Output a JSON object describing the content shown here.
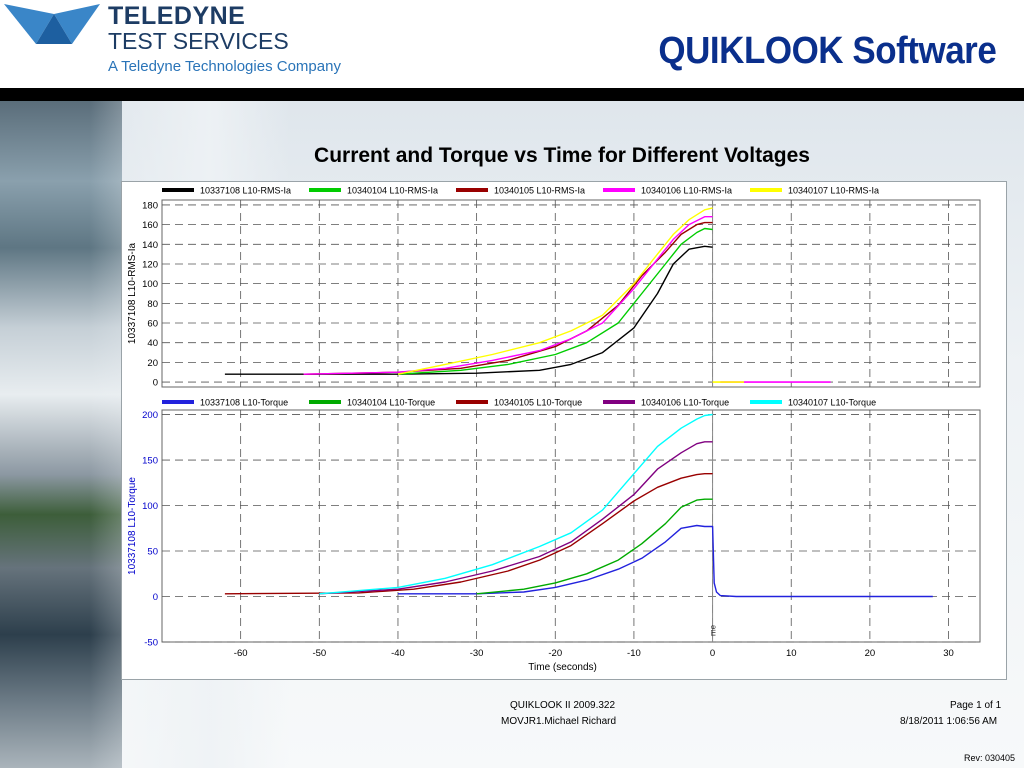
{
  "header": {
    "logo_line1": "TELEDYNE",
    "logo_line2": "TEST SERVICES",
    "logo_line3": "A Teledyne Technologies Company",
    "title": "QUIKLOOK Software"
  },
  "chart_title": "Current and Torque vs Time for Different Voltages",
  "footer": {
    "software": "QUIKLOOK II 2009.322",
    "user": "MOVJR1.Michael Richard",
    "page": "Page 1 of 1",
    "datetime": "8/18/2011 1:06:56 AM",
    "rev": "Rev: 030405"
  },
  "colors": {
    "header_title": "#0a2f8c",
    "logo": "#1d3c64"
  },
  "chart_data": [
    {
      "type": "line",
      "ylabel": "10337108   L10-RMS-Ia",
      "ylabel_color": "#000000",
      "xlim": [
        -70,
        34
      ],
      "ylim": [
        -5,
        185
      ],
      "yticks": [
        0,
        20,
        40,
        60,
        80,
        100,
        120,
        140,
        160,
        180
      ],
      "xticks": [
        -60,
        -50,
        -40,
        -30,
        -20,
        -10,
        0,
        10,
        20,
        30
      ],
      "grid": true,
      "legend": "top",
      "series": [
        {
          "name": "10337108   L10-RMS-Ia",
          "color": "#000000",
          "x": [
            -62,
            -40,
            -30,
            -22,
            -18,
            -14,
            -10,
            -7,
            -5,
            -3,
            -1,
            0
          ],
          "y": [
            8,
            8,
            9,
            12,
            18,
            30,
            55,
            90,
            120,
            135,
            138,
            137
          ],
          "tail_x": [],
          "tail_y": []
        },
        {
          "name": "10340104   L10-RMS-Ia",
          "color": "#00cc00",
          "x": [
            -40,
            -32,
            -26,
            -20,
            -16,
            -12,
            -9,
            -6,
            -4,
            -2,
            -1,
            0
          ],
          "y": [
            8,
            12,
            18,
            28,
            40,
            60,
            90,
            120,
            140,
            152,
            156,
            155
          ],
          "tail_x": [],
          "tail_y": []
        },
        {
          "name": "10340105   L10-RMS-Ia",
          "color": "#990000",
          "x": [
            -52,
            -40,
            -32,
            -26,
            -20,
            -16,
            -12,
            -9,
            -6,
            -4,
            -2,
            -1,
            0
          ],
          "y": [
            8,
            10,
            14,
            22,
            36,
            52,
            78,
            108,
            132,
            150,
            160,
            162,
            162
          ],
          "tail_x": [],
          "tail_y": []
        },
        {
          "name": "10340106   L10-RMS-Ia",
          "color": "#ff00ff",
          "x": [
            -52,
            -40,
            -34,
            -28,
            -22,
            -18,
            -14,
            -10,
            -7,
            -5,
            -3,
            -1,
            0
          ],
          "y": [
            8,
            10,
            14,
            22,
            32,
            44,
            60,
            95,
            125,
            145,
            160,
            168,
            168
          ],
          "tail_x": [
            1,
            15
          ],
          "tail_y": [
            0,
            0
          ]
        },
        {
          "name": "10340107   L10-RMS-Ia",
          "color": "#ffff00",
          "x": [
            -40,
            -34,
            -28,
            -22,
            -18,
            -14,
            -10,
            -7,
            -5,
            -3,
            -1,
            0
          ],
          "y": [
            8,
            18,
            28,
            40,
            52,
            68,
            100,
            130,
            150,
            165,
            175,
            177
          ],
          "tail_x": [
            0,
            4
          ],
          "tail_y": [
            0,
            0
          ]
        }
      ]
    },
    {
      "type": "line",
      "ylabel": "10337108   L10-Torque",
      "ylabel_color": "#0000cc",
      "xlabel": "Time   (seconds)",
      "vline_label": "me",
      "xlim": [
        -70,
        34
      ],
      "ylim": [
        -50,
        205
      ],
      "yticks": [
        -50,
        0,
        50,
        100,
        150,
        200
      ],
      "xticks": [
        -60,
        -50,
        -40,
        -30,
        -20,
        -10,
        0,
        10,
        20,
        30
      ],
      "grid": true,
      "legend": "top",
      "series": [
        {
          "name": "10337108   L10-Torque",
          "color": "#2222dd",
          "x": [
            -40,
            -30,
            -24,
            -20,
            -16,
            -12,
            -9,
            -6,
            -4,
            -2,
            -1,
            0,
            0.2,
            0.5,
            1,
            3,
            28
          ],
          "y": [
            3,
            3,
            5,
            10,
            18,
            30,
            42,
            60,
            75,
            78,
            77,
            77,
            15,
            5,
            1,
            0,
            0
          ],
          "tail_x": [],
          "tail_y": []
        },
        {
          "name": "10340104   L10-Torque",
          "color": "#00aa00",
          "x": [
            -30,
            -24,
            -20,
            -16,
            -12,
            -9,
            -6,
            -4,
            -2,
            -1,
            0
          ],
          "y": [
            3,
            8,
            15,
            25,
            40,
            58,
            80,
            98,
            106,
            107,
            107
          ],
          "tail_x": [],
          "tail_y": []
        },
        {
          "name": "10340105   L10-Torque",
          "color": "#990000",
          "x": [
            -62,
            -45,
            -38,
            -32,
            -26,
            -22,
            -18,
            -14,
            -10,
            -7,
            -4,
            -2,
            -1,
            0
          ],
          "y": [
            3,
            4,
            8,
            16,
            28,
            40,
            56,
            80,
            105,
            120,
            130,
            134,
            135,
            135
          ],
          "tail_x": [],
          "tail_y": []
        },
        {
          "name": "10340106   L10-Torque",
          "color": "#800080",
          "x": [
            -50,
            -40,
            -34,
            -28,
            -22,
            -18,
            -14,
            -10,
            -7,
            -4,
            -2,
            -1,
            0
          ],
          "y": [
            3,
            8,
            16,
            28,
            44,
            60,
            85,
            112,
            140,
            158,
            168,
            170,
            170
          ],
          "tail_x": [],
          "tail_y": []
        },
        {
          "name": "10340107   L10-Torque",
          "color": "#00ffff",
          "x": [
            -50,
            -40,
            -34,
            -28,
            -22,
            -18,
            -14,
            -10,
            -7,
            -4,
            -2,
            -1,
            0
          ],
          "y": [
            3,
            10,
            20,
            35,
            55,
            70,
            95,
            135,
            165,
            185,
            195,
            199,
            200
          ],
          "tail_x": [],
          "tail_y": []
        }
      ]
    }
  ]
}
